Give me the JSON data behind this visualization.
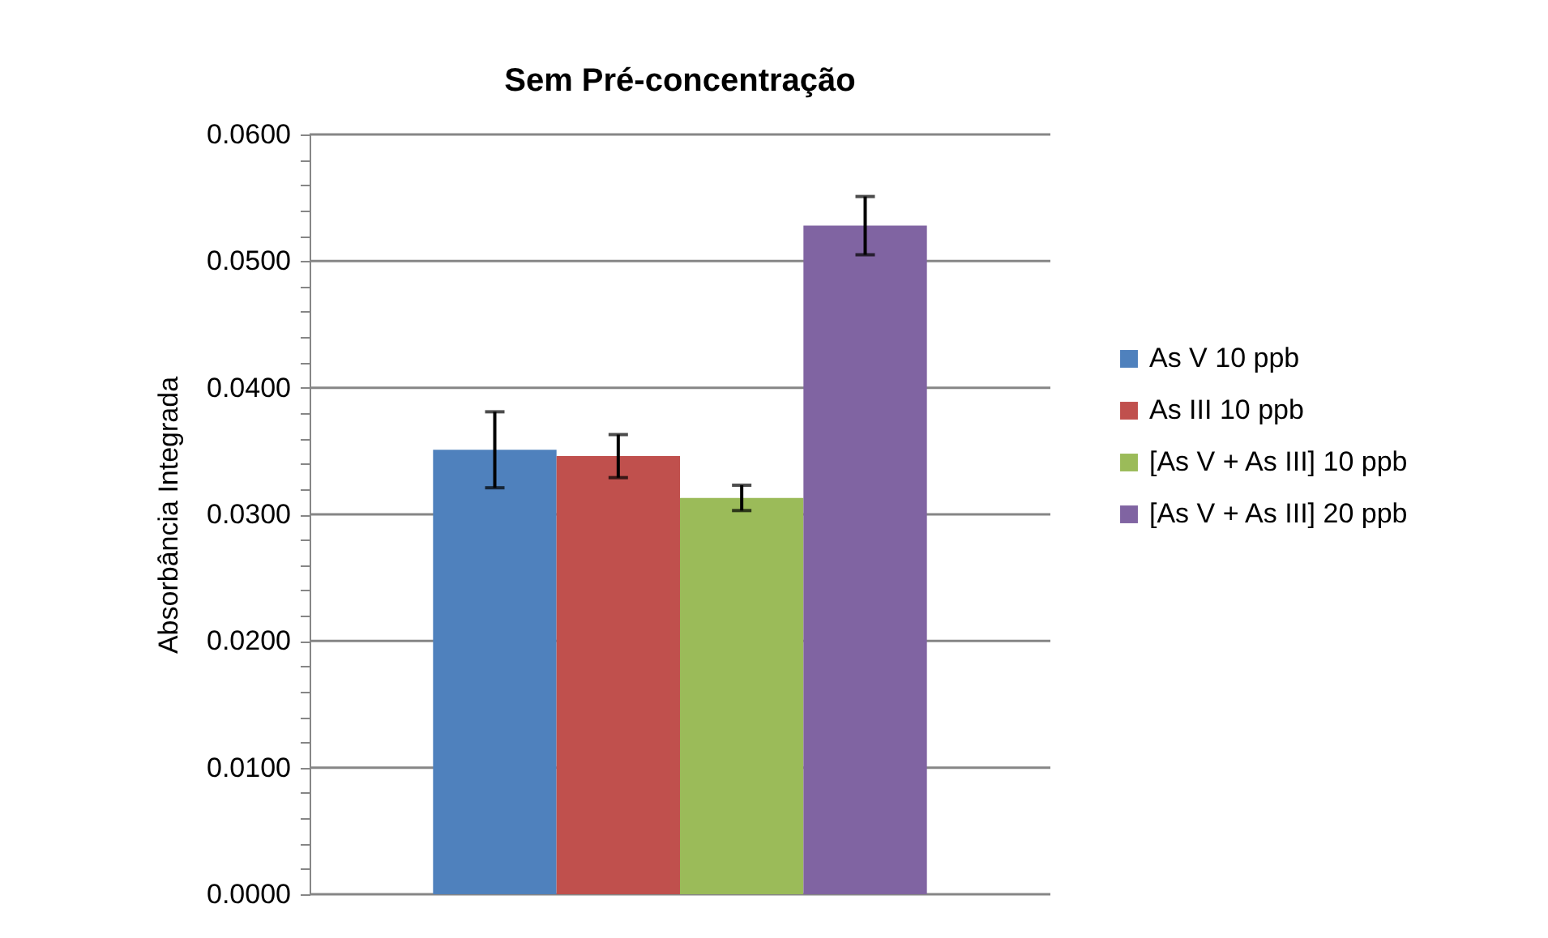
{
  "chart_data": {
    "type": "bar",
    "title": "Sem Pré-concentração",
    "ylabel": "Absorbância Integrada",
    "categories": [
      null
    ],
    "series": [
      {
        "name": "As V 10 ppb",
        "color": "#4f81bd",
        "values": [
          0.0351
        ],
        "errors": [
          0.003
        ]
      },
      {
        "name": "As III 10 ppb",
        "color": "#c0504d",
        "values": [
          0.0346
        ],
        "errors": [
          0.0017
        ]
      },
      {
        "name": "[As V + As III] 10 ppb",
        "color": "#9bbb59",
        "values": [
          0.0313
        ],
        "errors": [
          0.001
        ]
      },
      {
        "name": "[As V + As III] 20 ppb",
        "color": "#8064a2",
        "values": [
          0.0528
        ],
        "errors": [
          0.0023
        ]
      }
    ],
    "ylim": [
      0,
      0.06
    ],
    "yticks": [
      "0.0000",
      {
        "value": 0.002,
        "label": null
      },
      {
        "value": 0.004,
        "label": null
      },
      {
        "value": 0.006,
        "label": null
      },
      {
        "value": 0.008,
        "label": null
      },
      {
        "value": 0.01,
        "label": "0.0100"
      },
      {
        "value": 0.012,
        "label": null
      },
      {
        "value": 0.014,
        "label": null
      },
      {
        "value": 0.016,
        "label": null
      },
      {
        "value": 0.018,
        "label": null
      },
      {
        "value": 0.02,
        "label": "0.0200"
      },
      {
        "value": 0.022,
        "label": null
      },
      {
        "value": 0.024,
        "label": null
      },
      {
        "value": 0.026,
        "label": null
      },
      {
        "value": 0.028,
        "label": null
      },
      {
        "value": 0.03,
        "label": "0.0300"
      },
      {
        "value": 0.032,
        "label": null
      },
      {
        "value": 0.034,
        "label": null
      },
      {
        "value": 0.036,
        "label": null
      },
      {
        "value": 0.038,
        "label": null
      },
      {
        "value": 0.04,
        "label": "0.0400"
      },
      {
        "value": 0.042,
        "label": null
      },
      {
        "value": 0.044,
        "label": null
      },
      {
        "value": 0.046,
        "label": null
      },
      {
        "value": 0.048,
        "label": null
      },
      {
        "value": 0.05,
        "label": "0.0500"
      },
      {
        "value": 0.052,
        "label": null
      },
      {
        "value": 0.054,
        "label": null
      },
      {
        "value": 0.056,
        "label": null
      },
      {
        "value": 0.058,
        "label": null
      },
      {
        "value": 0.06,
        "label": "0.0600"
      }
    ],
    "grid": "y",
    "legend": "right"
  }
}
